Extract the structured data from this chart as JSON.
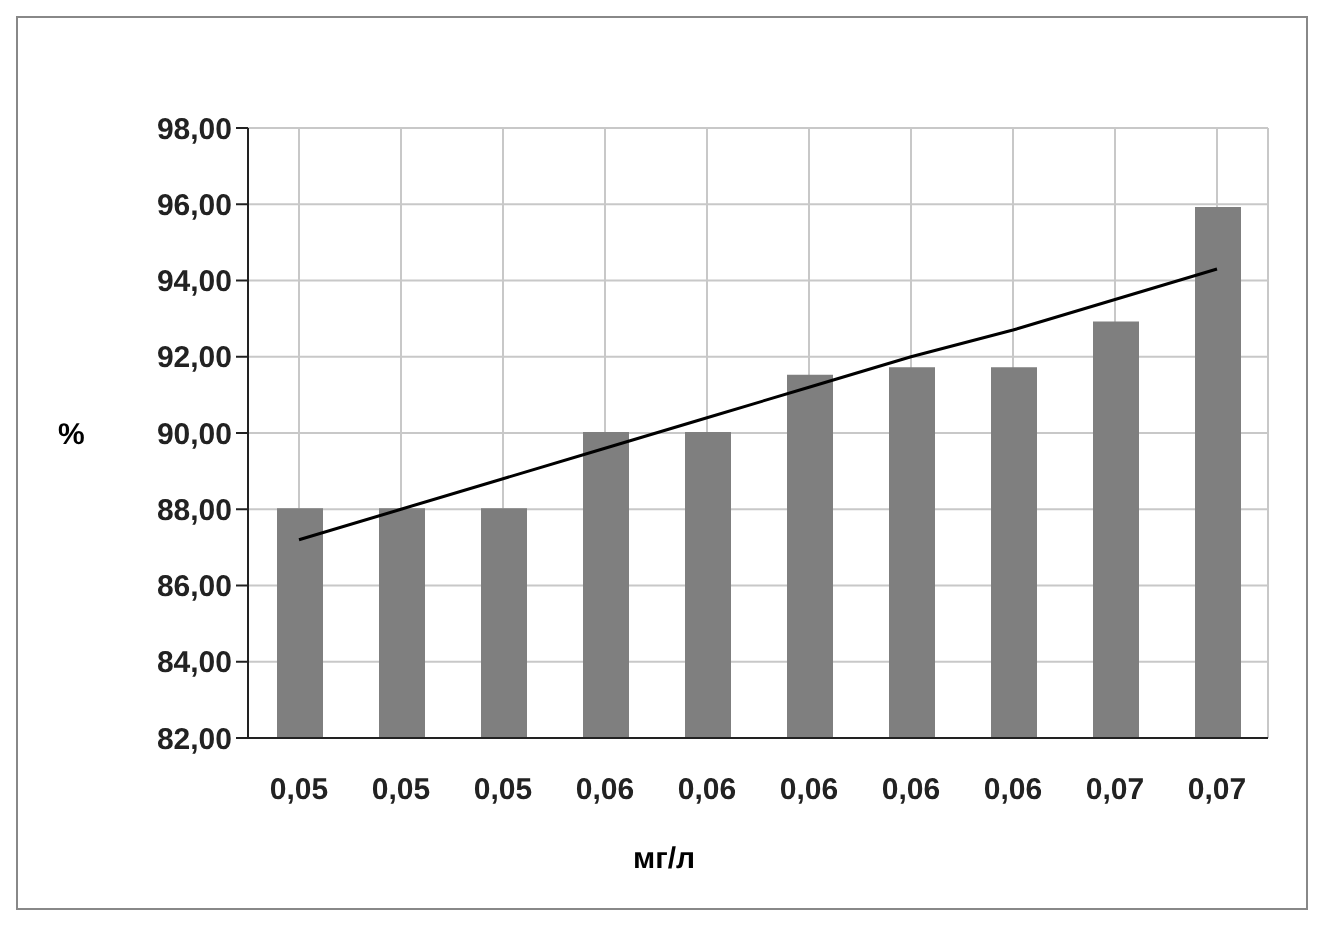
{
  "chart_data": {
    "type": "bar",
    "xlabel": "мг/л",
    "ylabel": "%",
    "categories": [
      "0,05",
      "0,05",
      "0,05",
      "0,06",
      "0,06",
      "0,06",
      "0,06",
      "0,06",
      "0,07",
      "0,07"
    ],
    "series": [
      {
        "color": "#7f7f7f",
        "values": [
          88.0,
          88.0,
          88.0,
          90.0,
          90.0,
          91.5,
          91.7,
          91.7,
          92.9,
          95.9
        ]
      },
      {
        "type": "line",
        "color": "#000000",
        "marker": "none",
        "values": [
          87.2,
          88.0,
          88.8,
          89.6,
          90.4,
          91.2,
          92.0,
          92.7,
          93.5,
          94.3
        ]
      }
    ],
    "ylim": [
      82,
      98
    ],
    "yticks": [
      {
        "value": 82,
        "label": "82,00"
      },
      {
        "value": 84,
        "label": "84,00"
      },
      {
        "value": 86,
        "label": "86,00"
      },
      {
        "value": 88,
        "label": "88,00"
      },
      {
        "value": 90,
        "label": "90,00"
      },
      {
        "value": 92,
        "label": "92,00"
      },
      {
        "value": 94,
        "label": "94,00"
      },
      {
        "value": 96,
        "label": "96,00"
      },
      {
        "value": 98,
        "label": "98,00"
      }
    ],
    "grid": true,
    "legend": false
  }
}
